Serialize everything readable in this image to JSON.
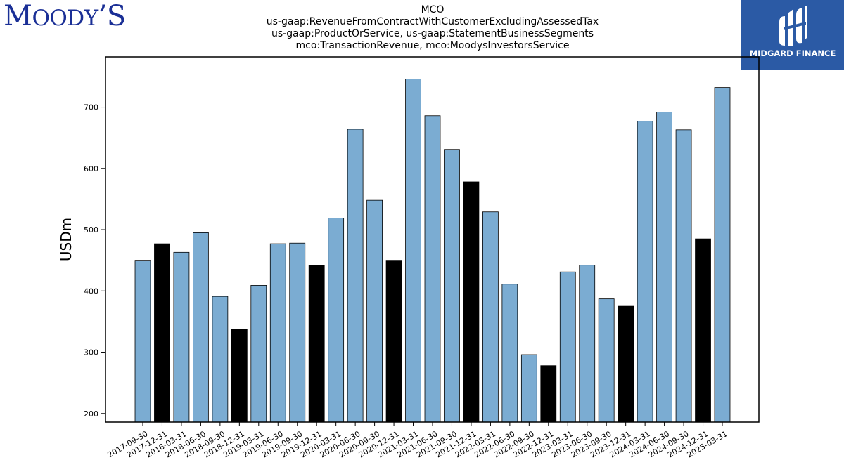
{
  "branding": {
    "left_logo_text_initial": "M",
    "left_logo_text_rest": "OODY",
    "left_logo_text_end": "’S",
    "right_logo_text": "MIDGARD FINANCE"
  },
  "colors": {
    "bar_regular": "#7bacd2",
    "bar_highlight": "#000000",
    "bar_edge": "#000000",
    "left_logo": "#1a2f96",
    "right_logo_bg": "#2b5aa5"
  },
  "chart_data": {
    "type": "bar",
    "title_lines": [
      "MCO",
      "us-gaap:RevenueFromContractWithCustomerExcludingAssessedTax",
      "us-gaap:ProductOrService, us-gaap:StatementBusinessSegments",
      "mco:TransactionRevenue, mco:MoodysInvestorsService"
    ],
    "xlabel": "",
    "ylabel": "USDm",
    "ylim": [
      186,
      782
    ],
    "yticks": [
      200,
      300,
      400,
      500,
      600,
      700
    ],
    "grid": false,
    "categories": [
      "2017-09-30",
      "2017-12-31",
      "2018-03-31",
      "2018-06-30",
      "2018-09-30",
      "2018-12-31",
      "2019-03-31",
      "2019-06-30",
      "2019-09-30",
      "2019-12-31",
      "2020-03-31",
      "2020-06-30",
      "2020-09-30",
      "2020-12-31",
      "2021-03-31",
      "2021-06-30",
      "2021-09-30",
      "2021-12-31",
      "2022-03-31",
      "2022-06-30",
      "2022-09-30",
      "2022-12-31",
      "2023-03-31",
      "2023-06-30",
      "2023-09-30",
      "2023-12-31",
      "2024-03-31",
      "2024-06-30",
      "2024-09-30",
      "2024-12-31",
      "2025-03-31"
    ],
    "values": [
      450,
      477,
      463,
      495,
      391,
      337,
      409,
      477,
      478,
      442,
      519,
      664,
      548,
      450,
      746,
      686,
      631,
      578,
      529,
      411,
      296,
      278,
      431,
      442,
      387,
      375,
      677,
      692,
      663,
      485,
      732
    ],
    "highlight_year_end": [
      false,
      true,
      false,
      false,
      false,
      true,
      false,
      false,
      false,
      true,
      false,
      false,
      false,
      true,
      false,
      false,
      false,
      true,
      false,
      false,
      false,
      true,
      false,
      false,
      false,
      true,
      false,
      false,
      false,
      true,
      false
    ]
  }
}
